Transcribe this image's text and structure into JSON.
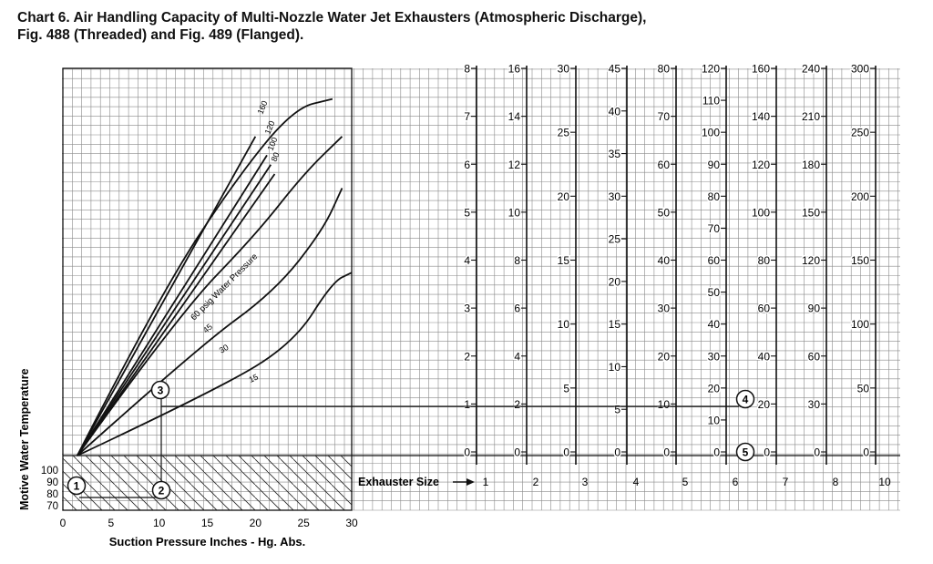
{
  "title_line1": "Chart 6.  Air Handling Capacity of Multi-Nozzle Water Jet Exhausters (Atmospheric Discharge),",
  "title_line2": "Fig. 488 (Threaded) and Fig. 489 (Flanged).",
  "chart_data": {
    "type": "line",
    "xlabel": "Suction Pressure Inches - Hg. Abs.",
    "ylabel": "Motive Water Temperature",
    "x_ticks": [
      "0",
      "5",
      "10",
      "15",
      "20",
      "25",
      "30"
    ],
    "temp_ticks": [
      "100",
      "90",
      "80",
      "70"
    ],
    "series": [
      {
        "name": "160",
        "label": "160",
        "points": [
          [
            1.5,
            0
          ],
          [
            20,
            68
          ]
        ]
      },
      {
        "name": "120",
        "label": "120",
        "points": [
          [
            1.5,
            0
          ],
          [
            21.2,
            64
          ]
        ]
      },
      {
        "name": "100",
        "label": "100",
        "points": [
          [
            1.5,
            0
          ],
          [
            21.6,
            62
          ]
        ]
      },
      {
        "name": "80",
        "label": "80",
        "points": [
          [
            1.5,
            0
          ],
          [
            22,
            60
          ]
        ]
      },
      {
        "name": "60 psig Water Pressure",
        "label": "60 psig Water Pressure",
        "points": [
          [
            1.5,
            0
          ],
          [
            10,
            34
          ],
          [
            18,
            59
          ],
          [
            24,
            74
          ],
          [
            28,
            76
          ]
        ]
      },
      {
        "name": "45",
        "label": "45",
        "points": [
          [
            1.5,
            0
          ],
          [
            12,
            30
          ],
          [
            20,
            47
          ],
          [
            25,
            60
          ],
          [
            29,
            68
          ]
        ]
      },
      {
        "name": "30",
        "label": "30",
        "points": [
          [
            1.5,
            0
          ],
          [
            14,
            23
          ],
          [
            22,
            35
          ],
          [
            27,
            48
          ],
          [
            29,
            57
          ]
        ]
      },
      {
        "name": "15",
        "label": "15",
        "points": [
          [
            1.5,
            0
          ],
          [
            16,
            14
          ],
          [
            24,
            24
          ],
          [
            28,
            37
          ],
          [
            30,
            39
          ]
        ]
      }
    ],
    "exhauster_axis_label": "Exhauster Size",
    "exhauster_sizes": [
      "1",
      "2",
      "3",
      "4",
      "5",
      "6",
      "7",
      "8",
      "10"
    ],
    "scales": [
      {
        "size": "1",
        "ticks": [
          {
            "label": "8",
            "value": 8
          },
          {
            "label": "7",
            "value": 7
          },
          {
            "label": "6",
            "value": 6
          },
          {
            "label": "5",
            "value": 5
          },
          {
            "label": "4",
            "value": 4
          },
          {
            "label": "3",
            "value": 3
          },
          {
            "label": "2",
            "value": 2
          },
          {
            "label": "1",
            "value": 1
          },
          {
            "label": "0",
            "value": 0
          }
        ]
      },
      {
        "size": "2",
        "ticks": [
          {
            "label": "16",
            "value": 16
          },
          {
            "label": "14",
            "value": 14
          },
          {
            "label": "12",
            "value": 12
          },
          {
            "label": "10",
            "value": 10
          },
          {
            "label": "8",
            "value": 8
          },
          {
            "label": "6",
            "value": 6
          },
          {
            "label": "4",
            "value": 4
          },
          {
            "label": "2",
            "value": 2
          },
          {
            "label": "0",
            "value": 0
          }
        ]
      },
      {
        "size": "3",
        "ticks": [
          {
            "label": "30",
            "value": 30
          },
          {
            "label": "25",
            "value": 25
          },
          {
            "label": "20",
            "value": 20
          },
          {
            "label": "15",
            "value": 15
          },
          {
            "label": "10",
            "value": 10
          },
          {
            "label": "5",
            "value": 5
          },
          {
            "label": "0",
            "value": 0
          }
        ]
      },
      {
        "size": "4",
        "ticks": [
          {
            "label": "45",
            "value": 45
          },
          {
            "label": "40",
            "value": 40
          },
          {
            "label": "35",
            "value": 35
          },
          {
            "label": "30",
            "value": 30
          },
          {
            "label": "25",
            "value": 25
          },
          {
            "label": "20",
            "value": 20
          },
          {
            "label": "15",
            "value": 15
          },
          {
            "label": "10",
            "value": 10
          },
          {
            "label": "5",
            "value": 5
          },
          {
            "label": "0",
            "value": 0
          }
        ]
      },
      {
        "size": "5",
        "ticks": [
          {
            "label": "80",
            "value": 80
          },
          {
            "label": "70",
            "value": 70
          },
          {
            "label": "60",
            "value": 60
          },
          {
            "label": "50",
            "value": 50
          },
          {
            "label": "40",
            "value": 40
          },
          {
            "label": "30",
            "value": 30
          },
          {
            "label": "20",
            "value": 20
          },
          {
            "label": "10",
            "value": 10
          },
          {
            "label": "0",
            "value": 0
          }
        ]
      },
      {
        "size": "6",
        "ticks": [
          {
            "label": "120",
            "value": 120
          },
          {
            "label": "110",
            "value": 110
          },
          {
            "label": "100",
            "value": 100
          },
          {
            "label": "90",
            "value": 90
          },
          {
            "label": "80",
            "value": 80
          },
          {
            "label": "70",
            "value": 70
          },
          {
            "label": "60",
            "value": 60
          },
          {
            "label": "50",
            "value": 50
          },
          {
            "label": "40",
            "value": 40
          },
          {
            "label": "30",
            "value": 30
          },
          {
            "label": "20",
            "value": 20
          },
          {
            "label": "10",
            "value": 10
          },
          {
            "label": "0",
            "value": 0
          }
        ]
      },
      {
        "size": "7",
        "ticks": [
          {
            "label": "160",
            "value": 160
          },
          {
            "label": "140",
            "value": 140
          },
          {
            "label": "120",
            "value": 120
          },
          {
            "label": "100",
            "value": 100
          },
          {
            "label": "80",
            "value": 80
          },
          {
            "label": "60",
            "value": 60
          },
          {
            "label": "40",
            "value": 40
          },
          {
            "label": "20",
            "value": 20
          },
          {
            "label": "0",
            "value": 0
          }
        ]
      },
      {
        "size": "8",
        "ticks": [
          {
            "label": "240",
            "value": 240
          },
          {
            "label": "210",
            "value": 210
          },
          {
            "label": "180",
            "value": 180
          },
          {
            "label": "150",
            "value": 150
          },
          {
            "label": "120",
            "value": 120
          },
          {
            "label": "90",
            "value": 90
          },
          {
            "label": "60",
            "value": 60
          },
          {
            "label": "30",
            "value": 30
          },
          {
            "label": "0",
            "value": 0
          }
        ]
      },
      {
        "size": "10",
        "ticks": [
          {
            "label": "300",
            "value": 300
          },
          {
            "label": "250",
            "value": 250
          },
          {
            "label": "200",
            "value": 200
          },
          {
            "label": "150",
            "value": 150
          },
          {
            "label": "100",
            "value": 100
          },
          {
            "label": "50",
            "value": 50
          },
          {
            "label": "0",
            "value": 0
          }
        ]
      }
    ],
    "markers": [
      "1",
      "2",
      "3",
      "4",
      "5"
    ],
    "example_path": {
      "temperature": 80,
      "suction_pressure": 10.5,
      "exhauster_size": 6,
      "capacity_size_6": 10
    }
  }
}
